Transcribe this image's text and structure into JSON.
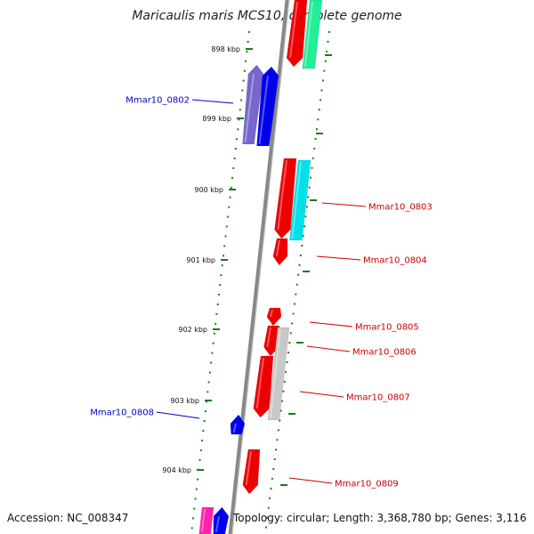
{
  "title": "Maricaulis maris MCS10, complete genome",
  "footer": {
    "accession": "Accession: NC_008347",
    "topology": "Topology: circular; Length: 3,368,780 bp; Genes: 3,116"
  },
  "ticks": [
    "898 kbp",
    "899 kbp",
    "900 kbp",
    "901 kbp",
    "902 kbp",
    "903 kbp",
    "904 kbp"
  ],
  "colors": {
    "backbone": "#888888",
    "tick": "#1e7a1e",
    "label_forward": "#cc0000",
    "label_reverse": "#0000cc"
  },
  "genes": [
    {
      "id": "g-top-red",
      "color": "#ee0000",
      "label": ""
    },
    {
      "id": "g-top-green",
      "color": "#22ee99",
      "label": ""
    },
    {
      "id": "g-0801-purple",
      "color": "#7766cc",
      "label": ""
    },
    {
      "id": "g-0802",
      "color": "#0000ee",
      "label": "Mmar10_0802"
    },
    {
      "id": "g-0803-red",
      "color": "#ee0000",
      "label": ""
    },
    {
      "id": "g-0803",
      "color": "#00e0e8",
      "label": "Mmar10_0803"
    },
    {
      "id": "g-0804",
      "color": "#ee0000",
      "label": "Mmar10_0804"
    },
    {
      "id": "g-0805",
      "color": "#ee0000",
      "label": "Mmar10_0805"
    },
    {
      "id": "g-0806",
      "color": "#ee0000",
      "label": "Mmar10_0806"
    },
    {
      "id": "g-0807-red",
      "color": "#ee0000",
      "label": ""
    },
    {
      "id": "g-0807",
      "color": "#c8c8c8",
      "label": "Mmar10_0807"
    },
    {
      "id": "g-0808",
      "color": "#0000ee",
      "label": "Mmar10_0808"
    },
    {
      "id": "g-0809",
      "color": "#ee0000",
      "label": "Mmar10_0809"
    },
    {
      "id": "g-bottom-pink",
      "color": "#ff22aa",
      "label": ""
    },
    {
      "id": "g-bottom-blue",
      "color": "#0000ee",
      "label": ""
    }
  ]
}
